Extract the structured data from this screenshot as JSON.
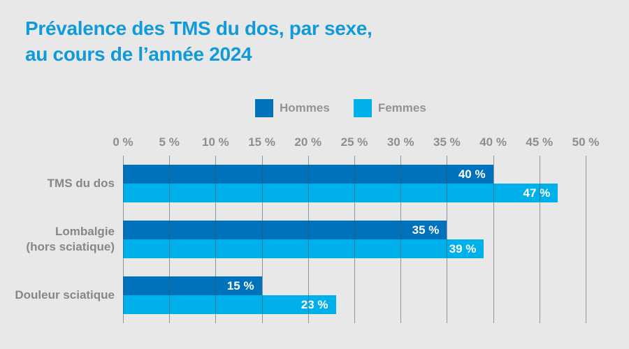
{
  "title": {
    "line1": "Prévalence des TMS du dos, par sexe,",
    "line2": "au cours de l’année 2024"
  },
  "legend": {
    "items": [
      {
        "label": "Hommes",
        "color": "#0072bc"
      },
      {
        "label": "Femmes",
        "color": "#00b0ea"
      }
    ]
  },
  "chart_data": {
    "type": "bar",
    "orientation": "horizontal",
    "title": "Prévalence des TMS du dos, par sexe, au cours de l’année 2024",
    "categories": [
      "TMS du dos",
      "Lombalgie (hors sciatique)",
      "Douleur sciatique"
    ],
    "category_label_lines": [
      [
        "TMS du dos"
      ],
      [
        "Lombalgie",
        "(hors sciatique)"
      ],
      [
        "Douleur sciatique"
      ]
    ],
    "series": [
      {
        "name": "Hommes",
        "color": "#0072bc",
        "values": [
          40,
          35,
          15
        ]
      },
      {
        "name": "Femmes",
        "color": "#00b0ea",
        "values": [
          47,
          39,
          23
        ]
      }
    ],
    "x_tick_labels": [
      "0 %",
      "5 %",
      "10 %",
      "15 %",
      "20 %",
      "25 %",
      "30 %",
      "35 %",
      "40 %",
      "45 %",
      "50 %"
    ],
    "x_tick_values": [
      0,
      5,
      10,
      15,
      20,
      25,
      30,
      35,
      40,
      45,
      50
    ],
    "xlim": [
      0,
      50
    ],
    "grid": true,
    "legend_position": "top",
    "value_label_suffix": " %"
  },
  "colors": {
    "background": "#e8e8e8",
    "title": "#109ad8",
    "axis_text": "#8c8e90",
    "category_text": "#85878a",
    "legend_text": "#919396",
    "value_text": "#ffffff"
  }
}
